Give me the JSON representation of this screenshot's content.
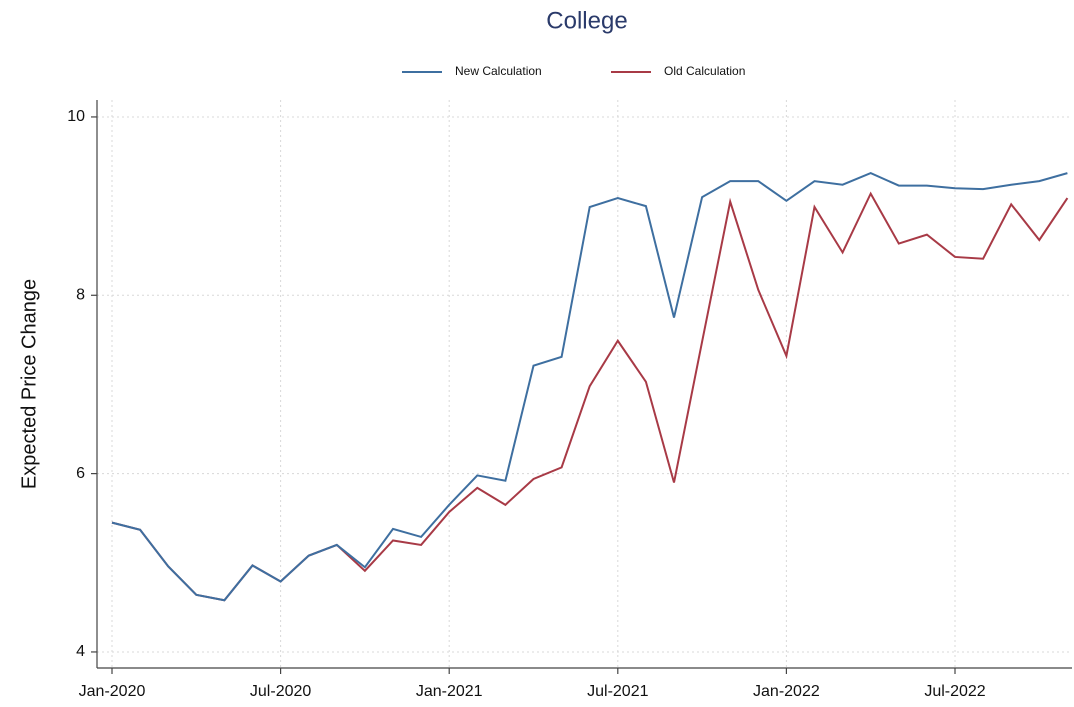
{
  "chart_data": {
    "type": "line",
    "title": "College",
    "y_label": "Expected Price Change",
    "categories": [
      "Jan-2020",
      null,
      null,
      null,
      null,
      null,
      "Jul-2020",
      null,
      null,
      null,
      null,
      null,
      "Jan-2021",
      null,
      null,
      null,
      null,
      null,
      "Jul-2021",
      null,
      null,
      null,
      null,
      null,
      "Jan-2022",
      null,
      null,
      null,
      null,
      null,
      "Jul-2022",
      null,
      null,
      null,
      null
    ],
    "series": [
      {
        "name": "New Calculation",
        "color": "#3e6fa0",
        "values": [
          5.45,
          5.37,
          4.96,
          4.64,
          4.58,
          4.97,
          4.79,
          5.08,
          5.2,
          4.95,
          5.38,
          5.29,
          5.65,
          5.98,
          5.92,
          7.21,
          7.31,
          8.99,
          9.09,
          9.0,
          7.75,
          9.1,
          9.28,
          9.28,
          9.06,
          9.28,
          9.24,
          9.37,
          9.23,
          9.23,
          9.2,
          9.19,
          9.24,
          9.28,
          9.37
        ]
      },
      {
        "name": "Old Calculation",
        "color": "#a83a46",
        "values": [
          5.45,
          5.37,
          4.96,
          4.64,
          4.58,
          4.97,
          4.79,
          5.08,
          5.2,
          4.91,
          5.25,
          5.2,
          5.57,
          5.84,
          5.65,
          5.94,
          6.07,
          6.98,
          7.49,
          7.03,
          5.9,
          7.48,
          9.05,
          8.06,
          7.32,
          8.99,
          8.48,
          9.14,
          8.58,
          8.68,
          8.43,
          8.41,
          9.02,
          8.62,
          9.09
        ]
      }
    ],
    "ylim": [
      3.82,
      10.19
    ],
    "yticks": [
      4,
      6,
      8,
      10
    ],
    "grid": true,
    "legend": "top"
  }
}
